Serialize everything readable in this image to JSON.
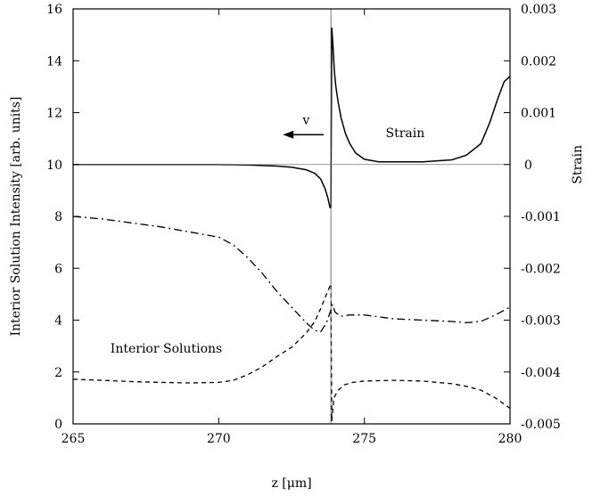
{
  "chart_data": {
    "type": "line",
    "xlabel": "z [μm]",
    "ylabel_left": "Interior Solution Intensity [arb. units]",
    "ylabel_right": "Strain",
    "xlim": [
      265,
      280
    ],
    "ylim_left": [
      0,
      16
    ],
    "ylim_right": [
      -0.005,
      0.003
    ],
    "x_ticks": [
      265,
      270,
      275,
      280
    ],
    "y_left_ticks": [
      0,
      2,
      4,
      6,
      8,
      10,
      12,
      14,
      16
    ],
    "y_right_ticks": [
      -0.005,
      -0.004,
      -0.003,
      -0.002,
      -0.001,
      0,
      0.001,
      0.002,
      0.003
    ],
    "y_right_tick_labels": [
      "-0.005",
      "-0.004",
      "-0.003",
      "-0.002",
      "-0.001",
      "0",
      "0.001",
      "0.002",
      "0.003"
    ],
    "grid": false,
    "reference_lines": [
      {
        "orientation": "horizontal",
        "axis": "right",
        "value": 0
      },
      {
        "orientation": "vertical",
        "axis": "x",
        "value": 273.85
      }
    ],
    "annotations": [
      {
        "text": "Strain",
        "x": 276.4,
        "y": 11.05,
        "axis": "left"
      },
      {
        "text": "Interior Solutions",
        "x": 268.2,
        "y": 2.75,
        "axis": "left"
      },
      {
        "text": "v",
        "x": 273.0,
        "y": 11.55,
        "axis": "left",
        "arrow": {
          "from_x": 273.6,
          "to_x": 272.2,
          "y": 11.15
        }
      }
    ],
    "series": [
      {
        "style": "solid",
        "axis": "right",
        "x": [
          265,
          268,
          270,
          271,
          272,
          272.5,
          273,
          273.3,
          273.5,
          273.65,
          273.75,
          273.82,
          273.85,
          273.88,
          273.92,
          273.97,
          274.02,
          274.1,
          274.2,
          274.35,
          274.5,
          274.7,
          275,
          275.5,
          276,
          277,
          278,
          278.5,
          279,
          279.3,
          279.6,
          279.8,
          280
        ],
        "y": [
          0,
          0,
          0,
          -1e-05,
          -3e-05,
          -5e-05,
          -0.0001,
          -0.00017,
          -0.00028,
          -0.00047,
          -0.00065,
          -0.00083,
          -0.00083,
          0.00263,
          0.0023,
          0.0018,
          0.0015,
          0.0012,
          0.0009,
          0.0006,
          0.0004,
          0.00022,
          0.0001,
          5e-05,
          5e-05,
          5e-05,
          9e-05,
          0.00018,
          0.0004,
          0.0008,
          0.0013,
          0.0016,
          0.0017
        ]
      },
      {
        "style": "dash-dot",
        "axis": "left",
        "x": [
          265,
          266,
          267,
          268,
          269,
          270,
          270.5,
          271,
          271.5,
          272,
          272.5,
          273,
          273.3,
          273.5,
          273.7,
          273.85,
          273.9,
          274,
          274.2,
          274.5,
          275,
          276,
          277,
          278,
          278.5,
          279,
          279.5,
          280
        ],
        "y": [
          8.0,
          7.9,
          7.75,
          7.6,
          7.4,
          7.2,
          6.9,
          6.4,
          5.8,
          5.1,
          4.5,
          3.9,
          3.6,
          3.55,
          3.9,
          4.4,
          4.6,
          4.3,
          4.15,
          4.2,
          4.2,
          4.05,
          4.0,
          3.95,
          3.9,
          3.95,
          4.2,
          4.5
        ]
      },
      {
        "style": "dashed",
        "axis": "left",
        "x": [
          265,
          266,
          267,
          268,
          269,
          270,
          270.5,
          271,
          271.5,
          272,
          272.5,
          273,
          273.3,
          273.5,
          273.7,
          273.85,
          273.88,
          273.95,
          274.1,
          274.3,
          274.6,
          275,
          276,
          277,
          278,
          278.5,
          279,
          279.5,
          280
        ],
        "y": [
          1.72,
          1.68,
          1.63,
          1.6,
          1.58,
          1.6,
          1.68,
          1.9,
          2.2,
          2.6,
          2.95,
          3.5,
          3.95,
          4.45,
          5.0,
          5.4,
          0.1,
          1.0,
          1.3,
          1.5,
          1.6,
          1.65,
          1.68,
          1.65,
          1.55,
          1.45,
          1.3,
          1.0,
          0.6
        ]
      }
    ]
  }
}
